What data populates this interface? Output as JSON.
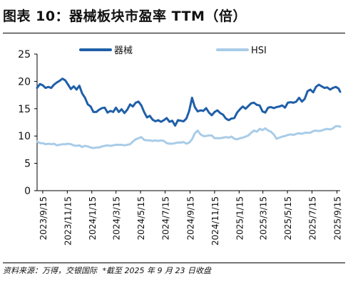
{
  "figure": {
    "title": "图表 10：器械板块市盈率 TTM（倍）",
    "source": "资料来源：万得，交银国际",
    "note": "*截至 2025 年 9 月 23 日收盘"
  },
  "chart_data": {
    "type": "line",
    "title": "图表 10：器械板块市盈率 TTM（倍）",
    "xlabel": "",
    "ylabel": "",
    "ylim": [
      0,
      25
    ],
    "yticks": [
      0,
      5,
      10,
      15,
      20,
      25
    ],
    "grid": false,
    "legend": "top",
    "xlim": [
      "2023-09-01",
      "2025-09-23"
    ],
    "xticks": [
      "2023/9/15",
      "2023/11/15",
      "2024/1/15",
      "2024/3/15",
      "2024/5/15",
      "2024/7/15",
      "2024/9/15",
      "2024/11/15",
      "2025/1/15",
      "2025/3/15",
      "2025/5/15",
      "2025/7/15",
      "2025/9/15"
    ],
    "xtick_dates": [
      "2023-09-15",
      "2023-11-15",
      "2024-01-15",
      "2024-03-15",
      "2024-05-15",
      "2024-07-15",
      "2024-09-15",
      "2024-11-15",
      "2025-01-15",
      "2025-03-15",
      "2025-05-15",
      "2025-07-15",
      "2025-09-15"
    ],
    "series": [
      {
        "name": "器械",
        "color": "#1f5fa8",
        "points": [
          [
            "2023-09-01",
            18.8
          ],
          [
            "2023-09-08",
            19.5
          ],
          [
            "2023-09-15",
            19.3
          ],
          [
            "2023-09-22",
            18.8
          ],
          [
            "2023-09-29",
            19.0
          ],
          [
            "2023-10-06",
            18.8
          ],
          [
            "2023-10-13",
            19.4
          ],
          [
            "2023-10-20",
            19.8
          ],
          [
            "2023-10-27",
            20.1
          ],
          [
            "2023-11-03",
            20.5
          ],
          [
            "2023-11-10",
            20.2
          ],
          [
            "2023-11-17",
            19.4
          ],
          [
            "2023-11-24",
            18.6
          ],
          [
            "2023-12-01",
            19.1
          ],
          [
            "2023-12-08",
            18.5
          ],
          [
            "2023-12-15",
            19.2
          ],
          [
            "2023-12-22",
            17.8
          ],
          [
            "2023-12-29",
            17.0
          ],
          [
            "2024-01-05",
            15.8
          ],
          [
            "2024-01-12",
            15.4
          ],
          [
            "2024-01-19",
            14.4
          ],
          [
            "2024-01-26",
            14.4
          ],
          [
            "2024-02-02",
            14.8
          ],
          [
            "2024-02-09",
            15.1
          ],
          [
            "2024-02-16",
            15.2
          ],
          [
            "2024-02-23",
            14.3
          ],
          [
            "2024-03-01",
            14.6
          ],
          [
            "2024-03-08",
            14.4
          ],
          [
            "2024-03-15",
            15.2
          ],
          [
            "2024-03-22",
            14.4
          ],
          [
            "2024-03-29",
            14.9
          ],
          [
            "2024-04-05",
            14.2
          ],
          [
            "2024-04-12",
            14.8
          ],
          [
            "2024-04-19",
            15.8
          ],
          [
            "2024-04-26",
            15.4
          ],
          [
            "2024-05-03",
            16.1
          ],
          [
            "2024-05-10",
            16.3
          ],
          [
            "2024-05-17",
            15.6
          ],
          [
            "2024-05-24",
            14.4
          ],
          [
            "2024-05-31",
            13.4
          ],
          [
            "2024-06-07",
            13.7
          ],
          [
            "2024-06-14",
            13.0
          ],
          [
            "2024-06-21",
            12.7
          ],
          [
            "2024-06-28",
            12.9
          ],
          [
            "2024-07-05",
            12.6
          ],
          [
            "2024-07-12",
            12.9
          ],
          [
            "2024-07-19",
            13.3
          ],
          [
            "2024-07-26",
            12.6
          ],
          [
            "2024-08-02",
            12.8
          ],
          [
            "2024-08-09",
            11.9
          ],
          [
            "2024-08-16",
            12.9
          ],
          [
            "2024-08-23",
            12.8
          ],
          [
            "2024-08-30",
            12.7
          ],
          [
            "2024-09-06",
            13.2
          ],
          [
            "2024-09-13",
            14.6
          ],
          [
            "2024-09-20",
            17.0
          ],
          [
            "2024-09-27",
            15.3
          ],
          [
            "2024-10-04",
            14.5
          ],
          [
            "2024-10-11",
            14.7
          ],
          [
            "2024-10-18",
            14.6
          ],
          [
            "2024-10-25",
            15.1
          ],
          [
            "2024-11-01",
            14.3
          ],
          [
            "2024-11-08",
            13.8
          ],
          [
            "2024-11-15",
            14.4
          ],
          [
            "2024-11-22",
            14.7
          ],
          [
            "2024-11-29",
            14.2
          ],
          [
            "2024-12-06",
            13.9
          ],
          [
            "2024-12-13",
            13.2
          ],
          [
            "2024-12-20",
            12.9
          ],
          [
            "2024-12-27",
            13.2
          ],
          [
            "2025-01-03",
            13.3
          ],
          [
            "2025-01-10",
            14.3
          ],
          [
            "2025-01-17",
            14.9
          ],
          [
            "2025-01-24",
            15.4
          ],
          [
            "2025-01-31",
            15.0
          ],
          [
            "2025-02-07",
            15.5
          ],
          [
            "2025-02-14",
            16.0
          ],
          [
            "2025-02-21",
            16.1
          ],
          [
            "2025-02-28",
            15.7
          ],
          [
            "2025-03-07",
            15.6
          ],
          [
            "2025-03-14",
            14.5
          ],
          [
            "2025-03-21",
            14.3
          ],
          [
            "2025-03-28",
            15.2
          ],
          [
            "2025-04-04",
            15.3
          ],
          [
            "2025-04-11",
            15.1
          ],
          [
            "2025-04-18",
            15.3
          ],
          [
            "2025-04-25",
            15.4
          ],
          [
            "2025-05-02",
            15.6
          ],
          [
            "2025-05-09",
            15.2
          ],
          [
            "2025-05-16",
            16.1
          ],
          [
            "2025-05-23",
            16.2
          ],
          [
            "2025-05-30",
            16.1
          ],
          [
            "2025-06-06",
            16.3
          ],
          [
            "2025-06-13",
            17.0
          ],
          [
            "2025-06-20",
            16.3
          ],
          [
            "2025-06-27",
            16.8
          ],
          [
            "2025-07-04",
            18.2
          ],
          [
            "2025-07-11",
            18.5
          ],
          [
            "2025-07-18",
            18.0
          ],
          [
            "2025-07-25",
            19.0
          ],
          [
            "2025-08-01",
            19.4
          ],
          [
            "2025-08-08",
            19.1
          ],
          [
            "2025-08-15",
            18.8
          ],
          [
            "2025-08-22",
            18.9
          ],
          [
            "2025-08-29",
            18.5
          ],
          [
            "2025-09-05",
            18.8
          ],
          [
            "2025-09-12",
            19.0
          ],
          [
            "2025-09-19",
            18.7
          ],
          [
            "2025-09-23",
            18.1
          ]
        ]
      },
      {
        "name": "HSI",
        "color": "#a8cce8",
        "points": [
          [
            "2023-09-01",
            9.0
          ],
          [
            "2023-09-08",
            8.7
          ],
          [
            "2023-09-15",
            8.7
          ],
          [
            "2023-09-22",
            8.5
          ],
          [
            "2023-09-29",
            8.6
          ],
          [
            "2023-10-06",
            8.5
          ],
          [
            "2023-10-13",
            8.6
          ],
          [
            "2023-10-20",
            8.3
          ],
          [
            "2023-10-27",
            8.4
          ],
          [
            "2023-11-03",
            8.5
          ],
          [
            "2023-11-10",
            8.5
          ],
          [
            "2023-11-17",
            8.6
          ],
          [
            "2023-11-24",
            8.5
          ],
          [
            "2023-12-01",
            8.3
          ],
          [
            "2023-12-08",
            8.2
          ],
          [
            "2023-12-15",
            8.3
          ],
          [
            "2023-12-22",
            8.0
          ],
          [
            "2023-12-29",
            8.2
          ],
          [
            "2024-01-05",
            8.1
          ],
          [
            "2024-01-12",
            7.9
          ],
          [
            "2024-01-19",
            7.8
          ],
          [
            "2024-01-26",
            7.9
          ],
          [
            "2024-02-02",
            7.9
          ],
          [
            "2024-02-09",
            8.1
          ],
          [
            "2024-02-16",
            8.2
          ],
          [
            "2024-02-23",
            8.3
          ],
          [
            "2024-03-01",
            8.2
          ],
          [
            "2024-03-08",
            8.3
          ],
          [
            "2024-03-15",
            8.4
          ],
          [
            "2024-03-22",
            8.4
          ],
          [
            "2024-03-29",
            8.4
          ],
          [
            "2024-04-05",
            8.3
          ],
          [
            "2024-04-12",
            8.4
          ],
          [
            "2024-04-19",
            8.5
          ],
          [
            "2024-04-26",
            9.0
          ],
          [
            "2024-05-03",
            9.4
          ],
          [
            "2024-05-10",
            9.6
          ],
          [
            "2024-05-17",
            9.8
          ],
          [
            "2024-05-24",
            9.3
          ],
          [
            "2024-05-31",
            9.2
          ],
          [
            "2024-06-07",
            9.2
          ],
          [
            "2024-06-14",
            9.1
          ],
          [
            "2024-06-21",
            9.2
          ],
          [
            "2024-06-28",
            9.1
          ],
          [
            "2024-07-05",
            9.2
          ],
          [
            "2024-07-12",
            9.1
          ],
          [
            "2024-07-19",
            8.7
          ],
          [
            "2024-07-26",
            8.6
          ],
          [
            "2024-08-02",
            8.6
          ],
          [
            "2024-08-09",
            8.7
          ],
          [
            "2024-08-16",
            8.8
          ],
          [
            "2024-08-23",
            8.8
          ],
          [
            "2024-08-30",
            8.9
          ],
          [
            "2024-09-06",
            8.6
          ],
          [
            "2024-09-13",
            8.8
          ],
          [
            "2024-09-20",
            9.4
          ],
          [
            "2024-09-27",
            10.5
          ],
          [
            "2024-10-04",
            11.0
          ],
          [
            "2024-10-11",
            10.3
          ],
          [
            "2024-10-18",
            10.0
          ],
          [
            "2024-10-25",
            10.0
          ],
          [
            "2024-11-01",
            10.1
          ],
          [
            "2024-11-08",
            10.1
          ],
          [
            "2024-11-15",
            9.6
          ],
          [
            "2024-11-22",
            9.6
          ],
          [
            "2024-11-29",
            9.6
          ],
          [
            "2024-12-06",
            9.7
          ],
          [
            "2024-12-13",
            9.8
          ],
          [
            "2024-12-20",
            9.7
          ],
          [
            "2024-12-27",
            9.9
          ],
          [
            "2025-01-03",
            9.5
          ],
          [
            "2025-01-10",
            9.4
          ],
          [
            "2025-01-17",
            9.6
          ],
          [
            "2025-01-24",
            9.7
          ],
          [
            "2025-01-31",
            9.9
          ],
          [
            "2025-02-07",
            10.1
          ],
          [
            "2025-02-14",
            10.6
          ],
          [
            "2025-02-21",
            11.0
          ],
          [
            "2025-02-28",
            10.8
          ],
          [
            "2025-03-07",
            11.3
          ],
          [
            "2025-03-14",
            11.1
          ],
          [
            "2025-03-21",
            11.4
          ],
          [
            "2025-03-28",
            11.0
          ],
          [
            "2025-04-04",
            10.8
          ],
          [
            "2025-04-11",
            10.3
          ],
          [
            "2025-04-18",
            9.5
          ],
          [
            "2025-04-25",
            9.7
          ],
          [
            "2025-05-02",
            9.9
          ],
          [
            "2025-05-09",
            10.0
          ],
          [
            "2025-05-16",
            10.2
          ],
          [
            "2025-05-23",
            10.3
          ],
          [
            "2025-05-30",
            10.2
          ],
          [
            "2025-06-06",
            10.4
          ],
          [
            "2025-06-13",
            10.5
          ],
          [
            "2025-06-20",
            10.4
          ],
          [
            "2025-06-27",
            10.6
          ],
          [
            "2025-07-04",
            10.6
          ],
          [
            "2025-07-11",
            10.6
          ],
          [
            "2025-07-18",
            10.9
          ],
          [
            "2025-07-25",
            11.0
          ],
          [
            "2025-08-01",
            10.9
          ],
          [
            "2025-08-08",
            11.0
          ],
          [
            "2025-08-15",
            11.2
          ],
          [
            "2025-08-22",
            11.3
          ],
          [
            "2025-08-29",
            11.2
          ],
          [
            "2025-09-05",
            11.4
          ],
          [
            "2025-09-12",
            11.8
          ],
          [
            "2025-09-19",
            11.8
          ],
          [
            "2025-09-23",
            11.7
          ]
        ]
      }
    ]
  }
}
